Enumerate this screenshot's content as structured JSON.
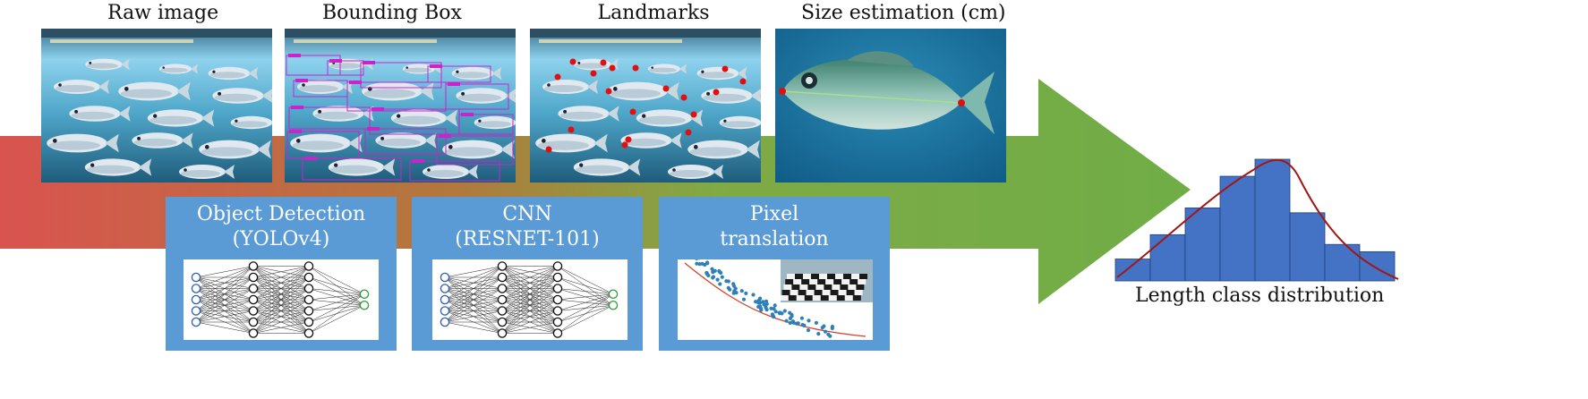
{
  "columns": {
    "raw_image": "Raw image",
    "bounding_box": "Bounding Box",
    "landmarks": "Landmarks",
    "size_estimation": "Size estimation (cm)"
  },
  "steps": [
    {
      "title_line1": "Object Detection",
      "title_line2": "(YOLOv4)"
    },
    {
      "title_line1": "CNN",
      "title_line2": "(RESNET-101)"
    },
    {
      "title_line1": "Pixel",
      "title_line2": "translation"
    }
  ],
  "histogram": {
    "caption": "Length class distribution",
    "bar_heights_relative": [
      0.18,
      0.38,
      0.6,
      0.86,
      1.0,
      0.56,
      0.3,
      0.24
    ]
  },
  "colors": {
    "arrow_start": "#d9534f",
    "arrow_end": "#70ad47",
    "box_blue": "#5b9bd5",
    "hist_bar": "#4472c4",
    "curve": "#a01818",
    "landmark": "#e01010",
    "bbox": "#cc22cc"
  }
}
